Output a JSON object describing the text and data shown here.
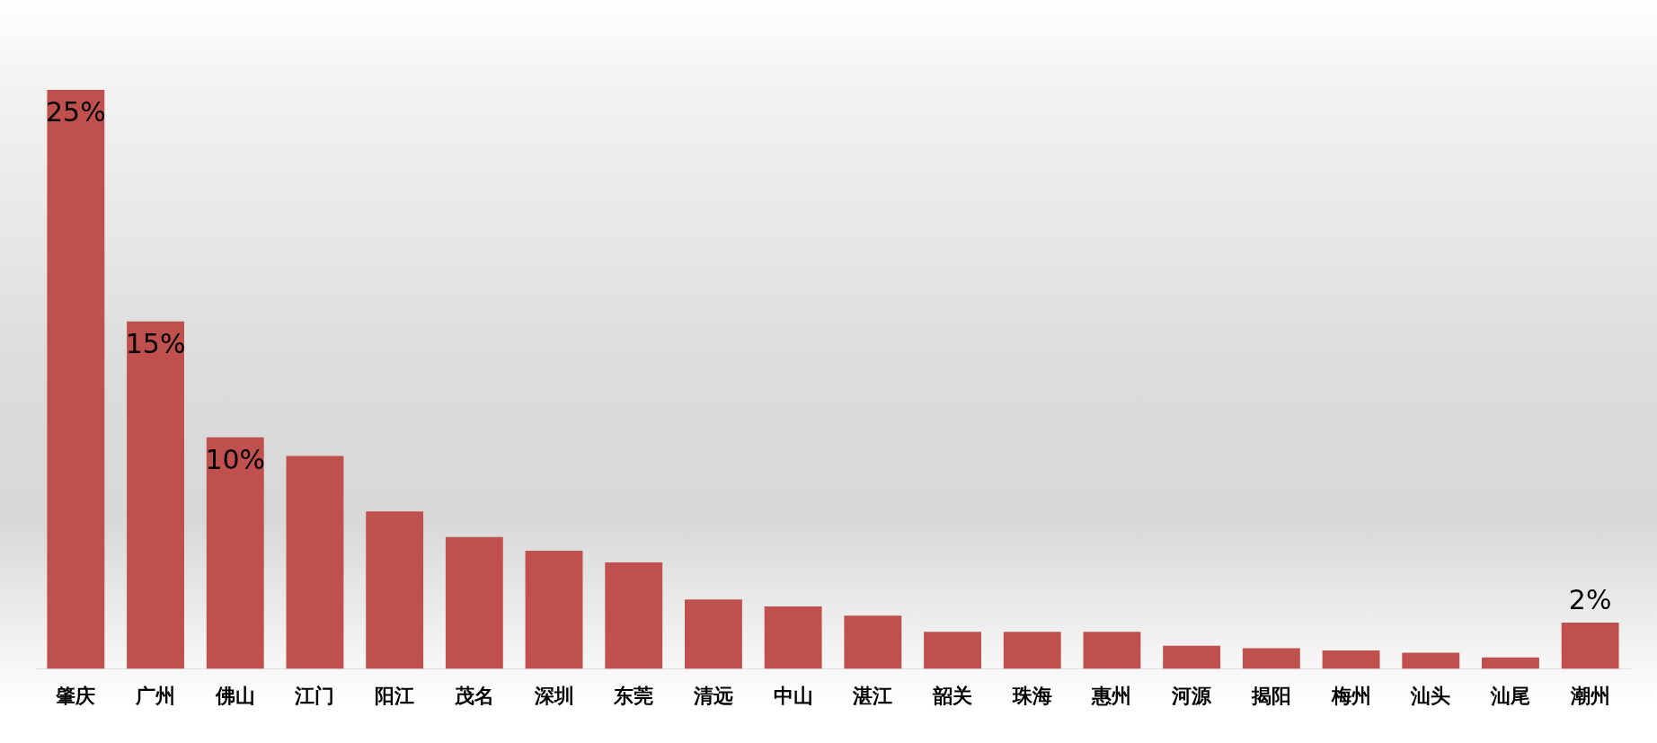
{
  "chart_data": {
    "type": "bar",
    "categories": [
      "肇庆",
      "广州",
      "佛山",
      "江门",
      "阳江",
      "茂名",
      "深圳",
      "东莞",
      "清远",
      "中山",
      "湛江",
      "韶关",
      "珠海",
      "惠州",
      "河源",
      "揭阳",
      "梅州",
      "汕头",
      "汕尾",
      "潮州"
    ],
    "values": [
      25,
      15,
      10,
      9.2,
      6.8,
      5.7,
      5.1,
      4.6,
      3.0,
      2.7,
      2.3,
      1.6,
      1.6,
      1.6,
      1.0,
      0.9,
      0.8,
      0.7,
      0.5,
      2
    ],
    "value_labels": [
      "25%",
      "15%",
      "10%",
      null,
      null,
      null,
      null,
      null,
      null,
      null,
      null,
      null,
      null,
      null,
      null,
      null,
      null,
      null,
      null,
      "2%"
    ],
    "color": "#c0504d",
    "grid": false,
    "legend": false
  }
}
